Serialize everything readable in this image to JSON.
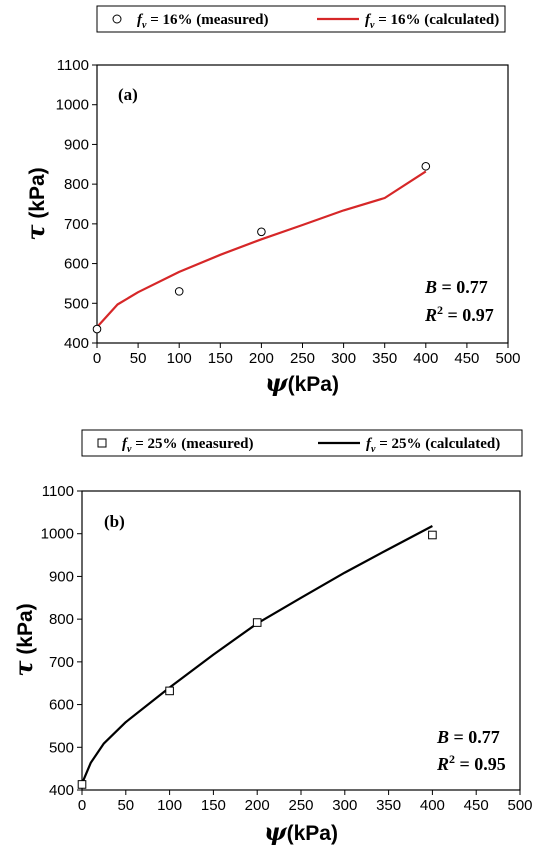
{
  "chart_data": [
    {
      "type": "scatter",
      "panel_label": "(a)",
      "legend": {
        "placement": "top",
        "measured": {
          "prefix": "f",
          "sub": "v",
          "text": " = 16% (measured)"
        },
        "calculated": {
          "prefix": "f",
          "sub": "v",
          "text": " = 16% (calculated)"
        }
      },
      "series": [
        {
          "kind": "measured",
          "marker": "circle",
          "x": [
            0,
            100,
            200,
            400
          ],
          "y": [
            435,
            530,
            680,
            845
          ]
        },
        {
          "kind": "calculated",
          "color": "#d62728",
          "x": [
            0,
            25,
            50,
            100,
            150,
            200,
            250,
            300,
            350,
            400
          ],
          "y": [
            440,
            497,
            528,
            579,
            622,
            661,
            697,
            734,
            765,
            832
          ]
        }
      ],
      "xlabel": {
        "sym": "ψ",
        "text": "(kPa)"
      },
      "ylabel": {
        "sym": "τ",
        "text": " (kPa)"
      },
      "xlim": [
        0,
        500
      ],
      "ylim": [
        400,
        1100
      ],
      "xticks": [
        "0",
        "50",
        "100",
        "150",
        "200",
        "250",
        "300",
        "350",
        "400",
        "450",
        "500"
      ],
      "yticks": [
        "400",
        "500",
        "600",
        "700",
        "800",
        "900",
        "1000",
        "1100"
      ],
      "annotation": {
        "b_label": "B",
        "b_value": " = 0.77",
        "r_label": "R",
        "r_sup": "2",
        "r_value": " = 0.97"
      }
    },
    {
      "type": "scatter",
      "panel_label": "(b)",
      "legend": {
        "placement": "top",
        "measured": {
          "prefix": "f",
          "sub": "v",
          "text": " = 25% (measured)"
        },
        "calculated": {
          "prefix": "f",
          "sub": "v",
          "text": " = 25% (calculated)"
        }
      },
      "series": [
        {
          "kind": "measured",
          "marker": "square",
          "x": [
            0,
            100,
            200,
            400
          ],
          "y": [
            413,
            632,
            792,
            997
          ]
        },
        {
          "kind": "calculated",
          "color": "#000000",
          "x": [
            0,
            10,
            25,
            50,
            100,
            150,
            200,
            250,
            300,
            350,
            400
          ],
          "y": [
            415,
            464,
            509,
            559,
            640,
            717,
            790,
            850,
            909,
            964,
            1018
          ]
        }
      ],
      "xlabel": {
        "sym": "ψ",
        "text": "(kPa)"
      },
      "ylabel": {
        "sym": "τ",
        "text": " (kPa)"
      },
      "xlim": [
        0,
        500
      ],
      "ylim": [
        400,
        1100
      ],
      "xticks": [
        "0",
        "50",
        "100",
        "150",
        "200",
        "250",
        "300",
        "350",
        "400",
        "450",
        "500"
      ],
      "yticks": [
        "400",
        "500",
        "600",
        "700",
        "800",
        "900",
        "1000",
        "1100"
      ],
      "annotation": {
        "b_label": "B",
        "b_value": " = 0.77",
        "r_label": "R",
        "r_sup": "2",
        "r_value": " = 0.95"
      }
    }
  ]
}
